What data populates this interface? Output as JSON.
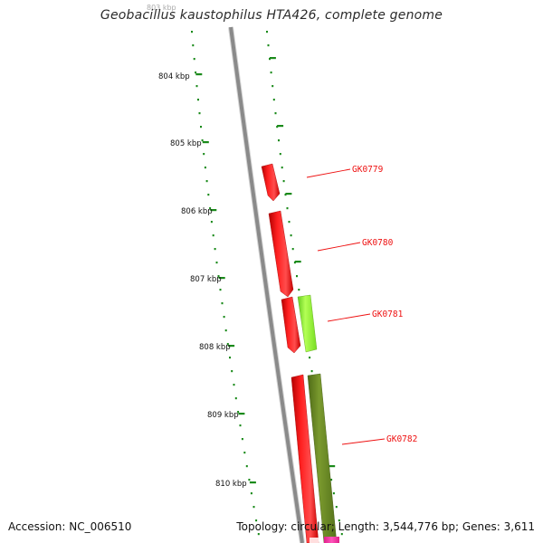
{
  "title": "Geobacillus kaustophilus HTA426, complete genome",
  "footer": {
    "accession": "Accession: NC_006510",
    "stats": "Topology: circular; Length: 3,544,776 bp; Genes: 3,611"
  },
  "scale": {
    "top_label": "803 kbp",
    "ticks": [
      {
        "label": "804 kbp",
        "kbp": 804
      },
      {
        "label": "805 kbp",
        "kbp": 805
      },
      {
        "label": "806 kbp",
        "kbp": 806
      },
      {
        "label": "807 kbp",
        "kbp": 807
      },
      {
        "label": "808 kbp",
        "kbp": 808
      },
      {
        "label": "809 kbp",
        "kbp": 809
      },
      {
        "label": "810 kbp",
        "kbp": 810
      }
    ]
  },
  "genes": [
    {
      "name": "GK0779",
      "strand": "forward",
      "color": "#ff0000"
    },
    {
      "name": "GK0780",
      "strand": "forward",
      "color": "#ff0000"
    },
    {
      "name": "GK0781",
      "strand": "reverse",
      "color": "#99ff33"
    },
    {
      "name": "GK0782",
      "strand": "reverse",
      "color": "#6b8e23"
    }
  ],
  "colors": {
    "backbone": "#8a8a8a",
    "ticks": "#1a8a1a",
    "forward_gene": "#ff0000",
    "reverse_gene_light": "#99ff33",
    "reverse_gene_dark": "#6b8e23",
    "partial_gene": "#ff33aa",
    "label_text": "#ee1111"
  }
}
